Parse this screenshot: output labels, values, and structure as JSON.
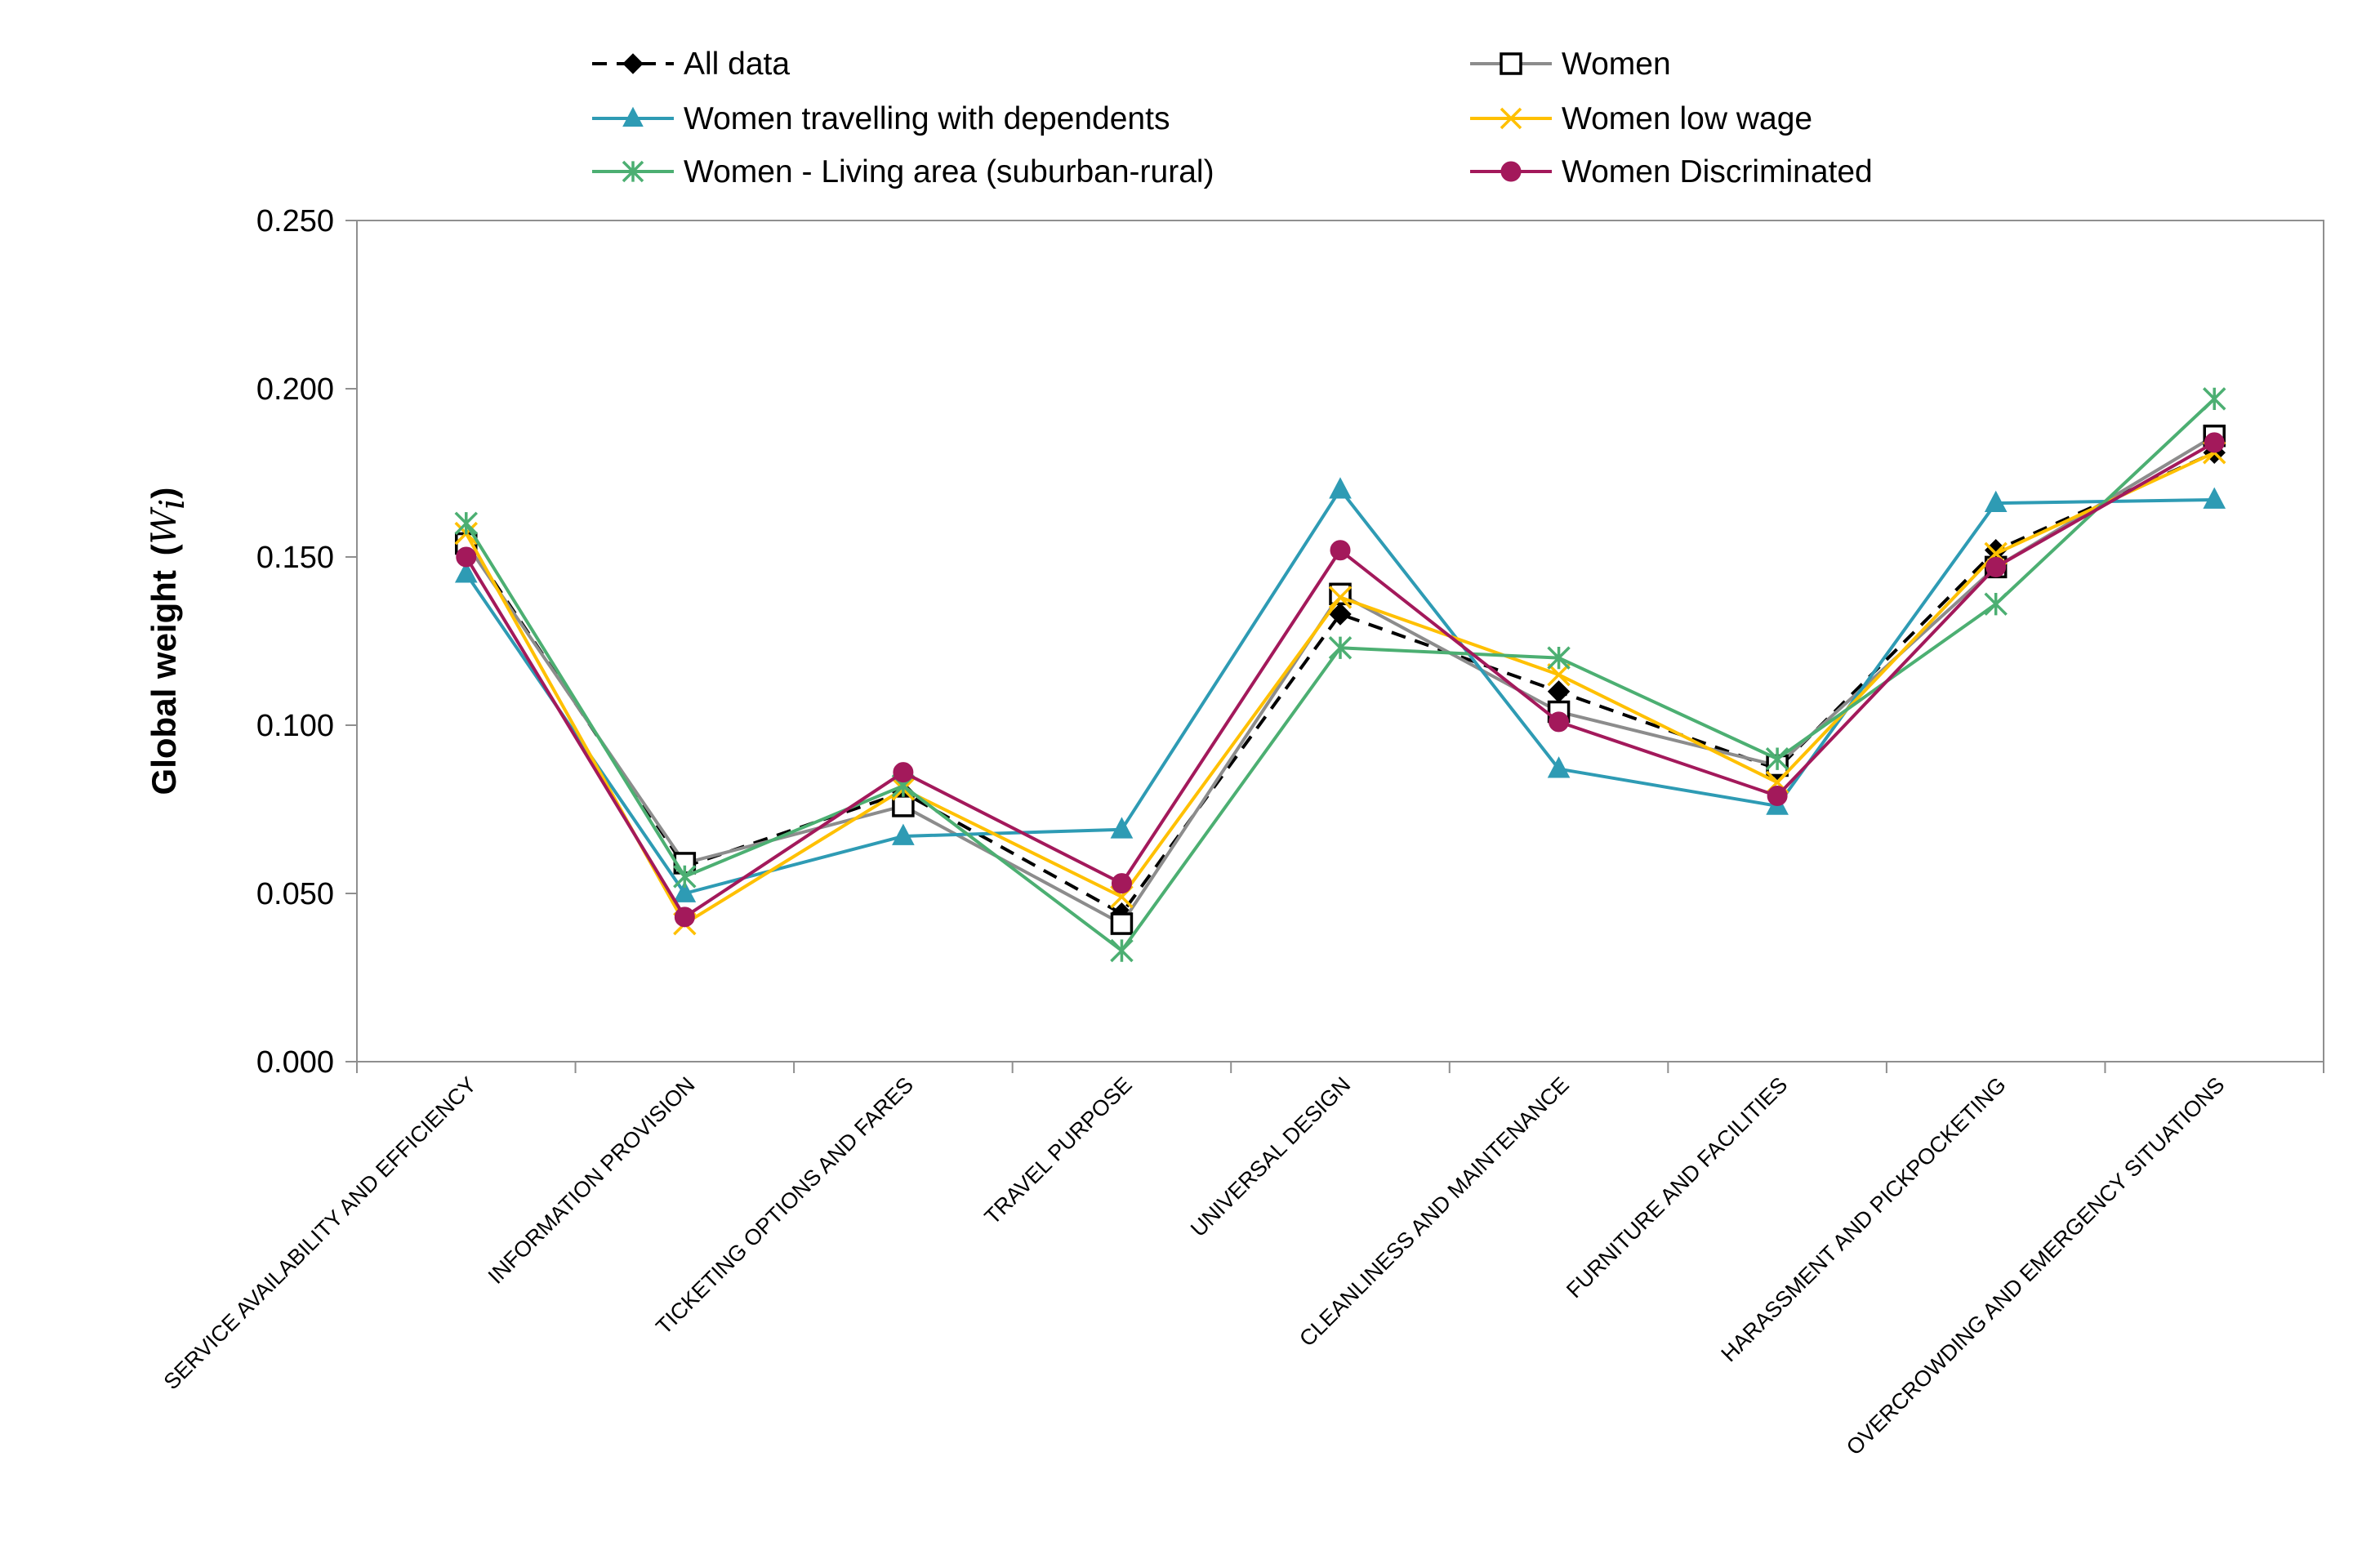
{
  "chart_data": {
    "type": "line",
    "title": "",
    "xlabel": "",
    "ylabel": "Global weight",
    "ylabel_symbol": "W",
    "ylabel_subscript": "i",
    "ylim": [
      0,
      0.25
    ],
    "yticks": [
      "0.000",
      "0.050",
      "0.100",
      "0.150",
      "0.200",
      "0.250"
    ],
    "grid": false,
    "legend_position": "top",
    "categories": [
      "SERVICE AVAILABILITY AND EFFICIENCY",
      "INFORMATION PROVISION",
      "TICKETING OPTIONS AND FARES",
      "TRAVEL PURPOSE",
      "UNIVERSAL DESIGN",
      "CLEANLINESS AND MAINTENANCE",
      "FURNITURE AND FACILITIES",
      "HARASSMENT AND PICKPOCKETING",
      "OVERCROWDING AND EMERGENCY SITUATIONS"
    ],
    "series": [
      {
        "name": "All data",
        "color": "#000000",
        "marker": "diamond",
        "dash": true,
        "values": [
          0.155,
          0.058,
          0.08,
          0.044,
          0.133,
          0.11,
          0.087,
          0.152,
          0.181
        ]
      },
      {
        "name": "Women",
        "color": "#8c8c8c",
        "marker": "square",
        "dash": false,
        "values": [
          0.154,
          0.059,
          0.076,
          0.041,
          0.139,
          0.104,
          0.088,
          0.147,
          0.186
        ]
      },
      {
        "name": "Women travelling with dependents",
        "color": "#2e9bb4",
        "marker": "triangle",
        "dash": false,
        "values": [
          0.145,
          0.05,
          0.067,
          0.069,
          0.17,
          0.087,
          0.076,
          0.166,
          0.167
        ]
      },
      {
        "name": "Women low wage",
        "color": "#ffc000",
        "marker": "x",
        "dash": false,
        "values": [
          0.157,
          0.041,
          0.081,
          0.049,
          0.138,
          0.115,
          0.083,
          0.151,
          0.181
        ]
      },
      {
        "name": "Women - Living area (suburban-rural)",
        "color": "#4caf72",
        "marker": "star",
        "dash": false,
        "values": [
          0.16,
          0.055,
          0.082,
          0.033,
          0.123,
          0.12,
          0.09,
          0.136,
          0.197
        ]
      },
      {
        "name": "Women Discriminated",
        "color": "#a3195b",
        "marker": "circle",
        "dash": false,
        "values": [
          0.15,
          0.043,
          0.086,
          0.053,
          0.152,
          0.101,
          0.079,
          0.147,
          0.184
        ]
      }
    ]
  }
}
